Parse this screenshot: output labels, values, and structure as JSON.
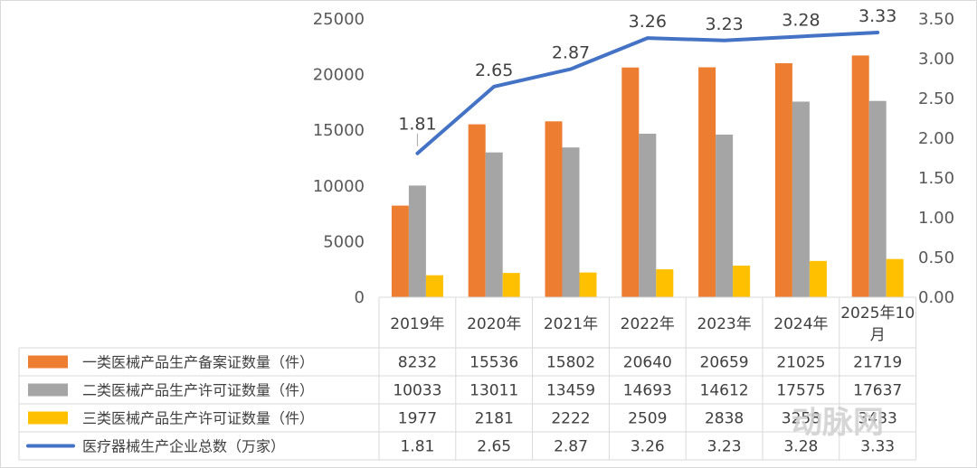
{
  "chart_data": {
    "type": "bar",
    "categories": [
      "2019年",
      "2020年",
      "2021年",
      "2022年",
      "2023年",
      "2024年",
      "2025年10月"
    ],
    "series": [
      {
        "name": "一类医械产品生产备案证数量（件）",
        "kind": "bar",
        "axis": "left",
        "color": "#ED7D31",
        "values": [
          8232,
          15536,
          15802,
          20640,
          20659,
          21025,
          21719
        ]
      },
      {
        "name": "二类医械产品生产许可证数量（件）",
        "kind": "bar",
        "axis": "left",
        "color": "#A5A5A5",
        "values": [
          10033,
          13011,
          13459,
          14693,
          14612,
          17575,
          17637
        ]
      },
      {
        "name": "三类医械产品生产许可证数量（件）",
        "kind": "bar",
        "axis": "left",
        "color": "#FFC000",
        "values": [
          1977,
          2181,
          2222,
          2509,
          2838,
          3258,
          3433
        ]
      },
      {
        "name": "医疗器械生产企业总数（万家）",
        "kind": "line",
        "axis": "right",
        "color": "#4472C4",
        "values": [
          1.81,
          2.65,
          2.87,
          3.26,
          3.23,
          3.28,
          3.33
        ]
      }
    ],
    "table": [
      [
        "8232",
        "15536",
        "15802",
        "20640",
        "20659",
        "21025",
        "21719"
      ],
      [
        "10033",
        "13011",
        "13459",
        "14693",
        "14612",
        "17575",
        "17637"
      ],
      [
        "1977",
        "2181",
        "2222",
        "2509",
        "2838",
        "3258",
        "3433"
      ],
      [
        "1.81",
        "2.65",
        "2.87",
        "3.26",
        "3.23",
        "3.28",
        "3.33"
      ]
    ],
    "line_labels": [
      "1.81",
      "2.65",
      "2.87",
      "3.26",
      "3.23",
      "3.28",
      "3.33"
    ],
    "y_left": {
      "ylim": [
        0,
        25000
      ],
      "ticks": [
        "0",
        "5000",
        "10000",
        "15000",
        "20000",
        "25000"
      ]
    },
    "y_right": {
      "ylim": [
        0,
        3.5
      ],
      "ticks": [
        "0.00",
        "0.50",
        "1.00",
        "1.50",
        "2.00",
        "2.50",
        "3.00",
        "3.50"
      ]
    },
    "legend": "data-table",
    "grid": false
  },
  "watermark": "动脉网"
}
